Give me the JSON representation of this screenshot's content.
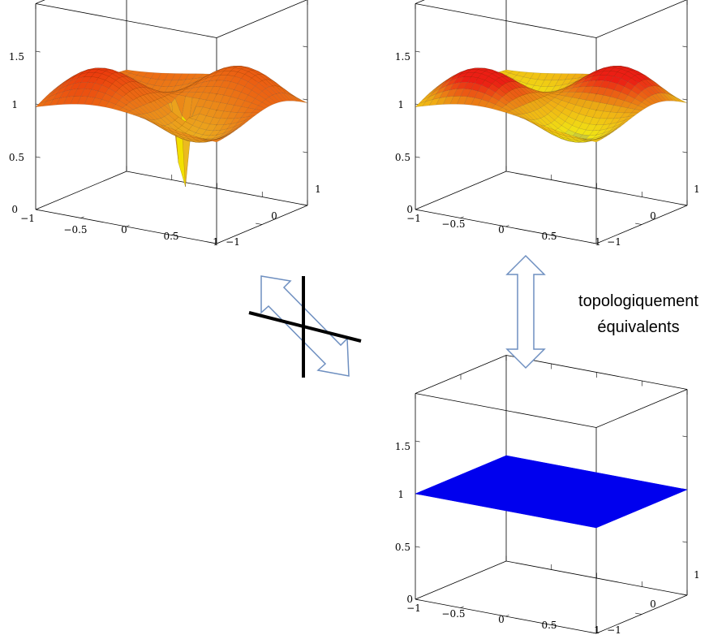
{
  "plots": [
    {
      "id": "top-left",
      "surface": "wavy-with-spike",
      "z_ticks": [
        "0",
        "0.5",
        "1",
        "1.5"
      ],
      "x_ticks": [
        "−1",
        "−0.5",
        "0",
        "0.5",
        "1"
      ],
      "y_ticks": [
        "−1",
        "0",
        "1"
      ]
    },
    {
      "id": "top-right",
      "surface": "wavy-smooth",
      "z_ticks": [
        "0",
        "0.5",
        "1",
        "1.5"
      ],
      "x_ticks": [
        "−1",
        "−0.5",
        "0",
        "0.5",
        "1"
      ],
      "y_ticks": [
        "−1",
        "0",
        "1"
      ]
    },
    {
      "id": "bottom-right",
      "surface": "flat",
      "z_ticks": [
        "0",
        "0.5",
        "1",
        "1.5"
      ],
      "x_ticks": [
        "−1",
        "−0.5",
        "0",
        "0.5",
        "1"
      ],
      "y_ticks": [
        "−1",
        "0",
        "1"
      ]
    }
  ],
  "caption": {
    "line1": "topologiquement",
    "line2": "équivalents"
  },
  "colors": {
    "arrow_fill": "#ffffff",
    "arrow_stroke": "#6e8fc0",
    "cross": "#000000",
    "flat_surface": "#0000ee"
  }
}
